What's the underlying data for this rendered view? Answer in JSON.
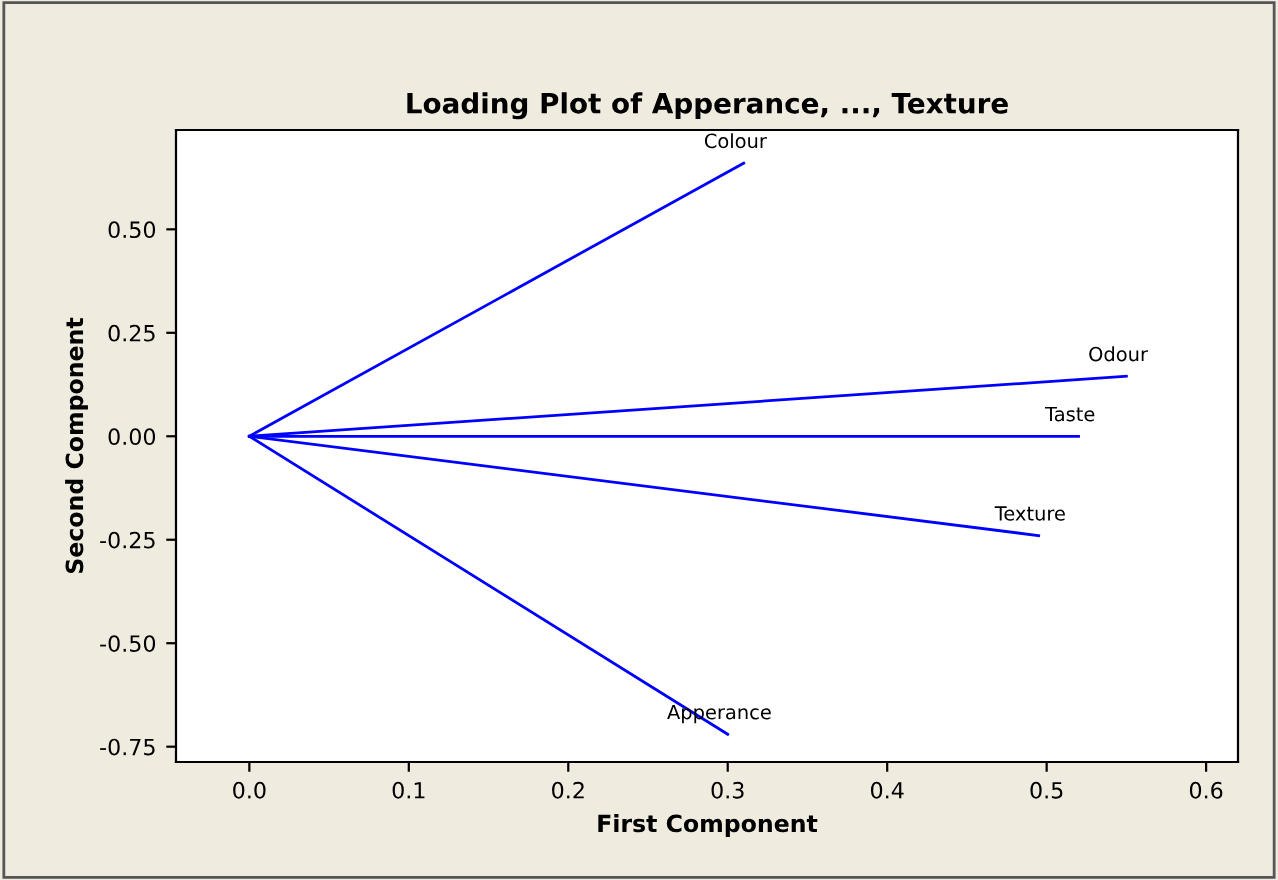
{
  "chart_data": {
    "type": "line",
    "title": "Loading Plot of Apperance, ..., Texture",
    "xlabel": "First Component",
    "ylabel": "Second Component",
    "series": [
      {
        "name": "Colour",
        "color": "#0000ff",
        "x": [
          0,
          0.31
        ],
        "values": [
          0,
          0.66
        ]
      },
      {
        "name": "Odour",
        "color": "#0000ff",
        "x": [
          0,
          0.55
        ],
        "values": [
          0,
          0.145
        ]
      },
      {
        "name": "Taste",
        "color": "#0000ff",
        "x": [
          0,
          0.52
        ],
        "values": [
          0,
          0.0
        ]
      },
      {
        "name": "Texture",
        "color": "#0000ff",
        "x": [
          0,
          0.495
        ],
        "values": [
          0,
          -0.24
        ]
      },
      {
        "name": "Apperance",
        "color": "#0000ff",
        "x": [
          0,
          0.3
        ],
        "values": [
          0,
          -0.72
        ]
      }
    ],
    "xlim": [
      -0.046,
      0.62
    ],
    "ylim": [
      -0.787,
      0.74
    ],
    "xticks": [
      {
        "value": 0,
        "label": "0.0"
      },
      0.1,
      0.2,
      0.3,
      0.4,
      0.5,
      0.6
    ],
    "yticks": [
      {
        "value": 0.5,
        "label": "0.50"
      },
      0.25,
      {
        "value": 0,
        "label": "0.00"
      },
      -0.25,
      {
        "value": -0.5,
        "label": "-0.50"
      },
      -0.75
    ],
    "grid": false,
    "legend": false,
    "marker": "none",
    "line_style": "solid"
  }
}
